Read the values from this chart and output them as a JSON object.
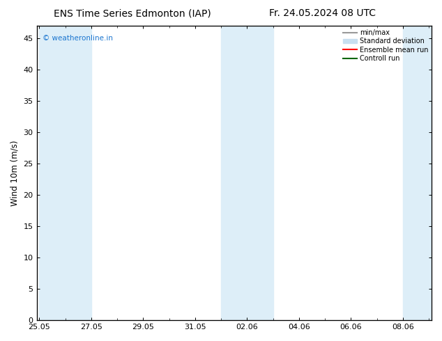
{
  "title_left": "ENS Time Series Edmonton (IAP)",
  "title_right": "Fr. 24.05.2024 08 UTC",
  "ylabel": "Wind 10m (m/s)",
  "bg_color": "#ffffff",
  "plot_bg_color": "#ffffff",
  "shaded_band_color": "#ddeef8",
  "ylim": [
    0,
    47
  ],
  "yticks": [
    0,
    5,
    10,
    15,
    20,
    25,
    30,
    35,
    40,
    45
  ],
  "xtick_labels": [
    "25.05",
    "27.05",
    "29.05",
    "31.05",
    "02.06",
    "04.06",
    "06.06",
    "08.06"
  ],
  "watermark_text": "© weatheronline.in",
  "watermark_color": "#1a75cf",
  "legend_entries": [
    {
      "label": "min/max",
      "color": "#999999",
      "lw": 1.5
    },
    {
      "label": "Standard deviation",
      "color": "#c8dff0",
      "lw": 6
    },
    {
      "label": "Ensemble mean run",
      "color": "#ff0000",
      "lw": 1.5
    },
    {
      "label": "Controll run",
      "color": "#006600",
      "lw": 1.5
    }
  ],
  "title_fontsize": 10,
  "axis_label_fontsize": 8.5,
  "tick_fontsize": 8
}
